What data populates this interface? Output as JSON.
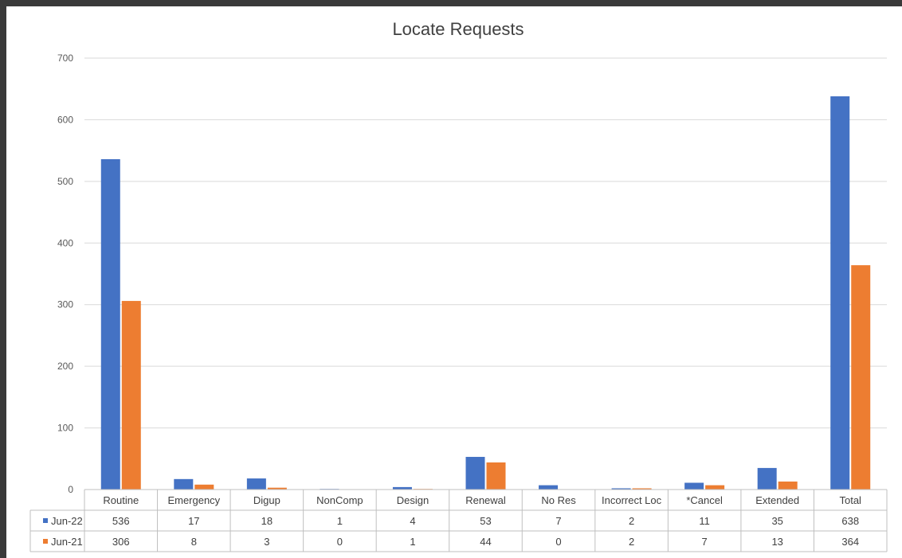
{
  "chart_data": {
    "type": "bar",
    "title": "Locate Requests",
    "categories": [
      "Routine",
      "Emergency",
      "Digup",
      "NonComp",
      "Design",
      "Renewal",
      "No Res",
      "Incorrect Loc",
      "*Cancel",
      "Extended",
      "Total"
    ],
    "series": [
      {
        "name": "Jun-22",
        "values": [
          536,
          17,
          18,
          1,
          4,
          53,
          7,
          2,
          11,
          35,
          638
        ],
        "labels": [
          "536",
          "17",
          "18",
          "1",
          "4",
          "53",
          "7",
          "2",
          "11",
          "35",
          "638"
        ]
      },
      {
        "name": "Jun-21",
        "values": [
          306,
          8,
          3,
          0,
          1,
          44,
          0,
          2,
          7,
          13,
          364
        ],
        "labels": [
          "306",
          "8",
          "3",
          "0",
          "1",
          "44",
          "0",
          "2",
          "7",
          "13",
          "364"
        ]
      }
    ],
    "yticks": [
      "0",
      "100",
      "200",
      "300",
      "400",
      "500",
      "600",
      "700"
    ],
    "ylim": [
      0,
      700
    ],
    "grid": true,
    "legend": "data-table"
  },
  "colors": {
    "series": [
      "#4472c4",
      "#ed7d31"
    ]
  }
}
